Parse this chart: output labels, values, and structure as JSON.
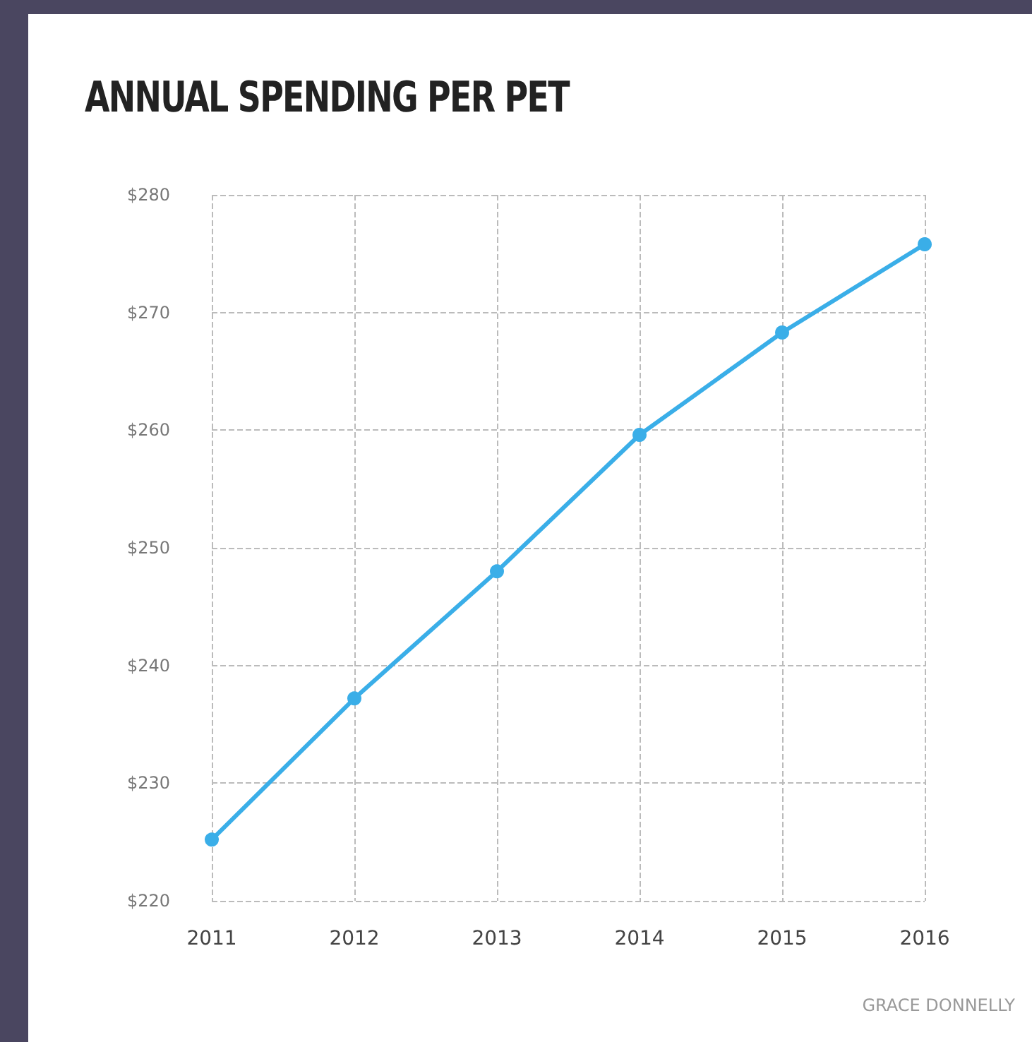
{
  "chart_data": {
    "type": "line",
    "title": "ANNUAL SPENDING PER PET",
    "categories": [
      "2011",
      "2012",
      "2013",
      "2014",
      "2015",
      "2016"
    ],
    "series": [
      {
        "color": "#3aaee8",
        "values": [
          225.2,
          237.2,
          248,
          259.6,
          268.3,
          275.8
        ]
      }
    ],
    "ylim": [
      220,
      280
    ],
    "yticks": [
      {
        "value": 220,
        "label": "$220"
      },
      {
        "value": 230,
        "label": "$230"
      },
      {
        "value": 240,
        "label": "$240"
      },
      {
        "value": 250,
        "label": "$250"
      },
      {
        "value": 260,
        "label": "$260"
      },
      {
        "value": 270,
        "label": "$270"
      },
      {
        "value": 280,
        "label": "$280"
      }
    ],
    "grid": true,
    "marker": "circle",
    "line_style": "solid",
    "annotations": [
      "GRACE DONNELLY"
    ]
  }
}
